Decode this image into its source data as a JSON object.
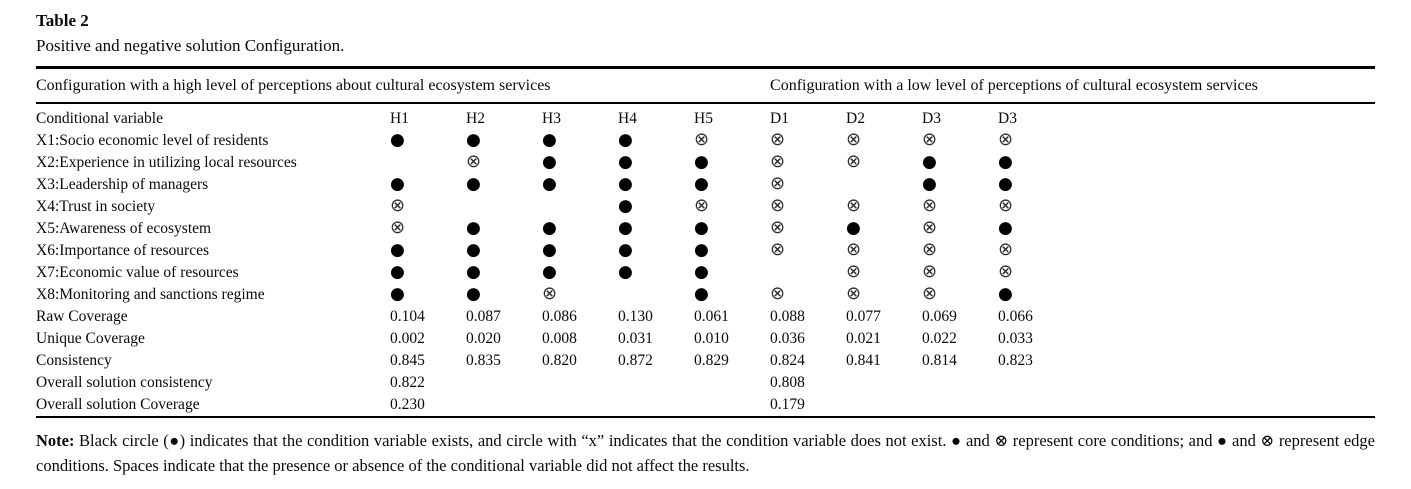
{
  "page": {
    "title": "Table 2",
    "subtitle": "Positive and negative solution Configuration."
  },
  "colors": {
    "background": "#ffffff",
    "text": "#0a0a0a",
    "rule": "#000000",
    "symbol_present": "#000000",
    "symbol_absent": "#2f2f2f"
  },
  "symbols": {
    "present_glyph": "●",
    "absent_glyph": "⊗",
    "present_meaning": "condition variable exists",
    "absent_meaning": "condition variable does not exist"
  },
  "table": {
    "panel_headers": [
      "Configuration with a high level of perceptions about cultural ecosystem services",
      "Configuration with a low level of perceptions of cultural ecosystem services"
    ],
    "header_row": [
      "Conditional variable",
      "H1",
      "H2",
      "H3",
      "H4",
      "H5",
      "D1",
      "D2",
      "D3",
      "D3"
    ],
    "condition_rows": [
      {
        "label": "X1:Socio economic level of residents",
        "cells": [
          "present",
          "present",
          "present",
          "present",
          "absent",
          "absent",
          "absent",
          "absent",
          "absent"
        ]
      },
      {
        "label": "X2:Experience in utilizing local resources",
        "cells": [
          "",
          "absent",
          "present",
          "present",
          "present",
          "absent",
          "absent",
          "present",
          "present"
        ]
      },
      {
        "label": "X3:Leadership of managers",
        "cells": [
          "present",
          "present",
          "present",
          "present",
          "present",
          "absent",
          "",
          "present",
          "present"
        ]
      },
      {
        "label": "X4:Trust in society",
        "cells": [
          "absent",
          "",
          "",
          "present",
          "absent",
          "absent",
          "absent",
          "absent",
          "absent"
        ]
      },
      {
        "label": "X5:Awareness of ecosystem",
        "cells": [
          "absent",
          "present",
          "present",
          "present",
          "present",
          "absent",
          "present",
          "absent",
          "present"
        ]
      },
      {
        "label": "X6:Importance of resources",
        "cells": [
          "present",
          "present",
          "present",
          "present",
          "present",
          "absent",
          "absent",
          "absent",
          "absent"
        ]
      },
      {
        "label": "X7:Economic value of resources",
        "cells": [
          "present",
          "present",
          "present",
          "present",
          "present",
          "",
          "absent",
          "absent",
          "absent"
        ]
      },
      {
        "label": "X8:Monitoring and sanctions regime",
        "cells": [
          "present",
          "present",
          "absent",
          "",
          "present",
          "absent",
          "absent",
          "absent",
          "present"
        ]
      }
    ],
    "stat_rows": [
      {
        "label": "Raw Coverage",
        "cells": [
          "0.104",
          "0.087",
          "0.086",
          "0.130",
          "0.061",
          "0.088",
          "0.077",
          "0.069",
          "0.066"
        ]
      },
      {
        "label": "Unique Coverage",
        "cells": [
          "0.002",
          "0.020",
          "0.008",
          "0.031",
          "0.010",
          "0.036",
          "0.021",
          "0.022",
          "0.033"
        ]
      },
      {
        "label": "Consistency",
        "cells": [
          "0.845",
          "0.835",
          "0.820",
          "0.872",
          "0.829",
          "0.824",
          "0.841",
          "0.814",
          "0.823"
        ]
      },
      {
        "label": "Overall solution consistency",
        "cells": [
          "0.822",
          "",
          "",
          "",
          "",
          "0.808",
          "",
          "",
          ""
        ]
      },
      {
        "label": "Overall solution Coverage",
        "cells": [
          "0.230",
          "",
          "",
          "",
          "",
          "0.179",
          "",
          "",
          ""
        ]
      }
    ]
  },
  "note": {
    "label": "Note:",
    "text": " Black circle (●) indicates that the condition variable exists, and circle with “x” indicates that the condition variable does not exist. ● and ⊗ represent core conditions; and ● and ⊗ represent edge conditions. Spaces indicate that the presence or absence of the conditional variable did not affect the results."
  }
}
